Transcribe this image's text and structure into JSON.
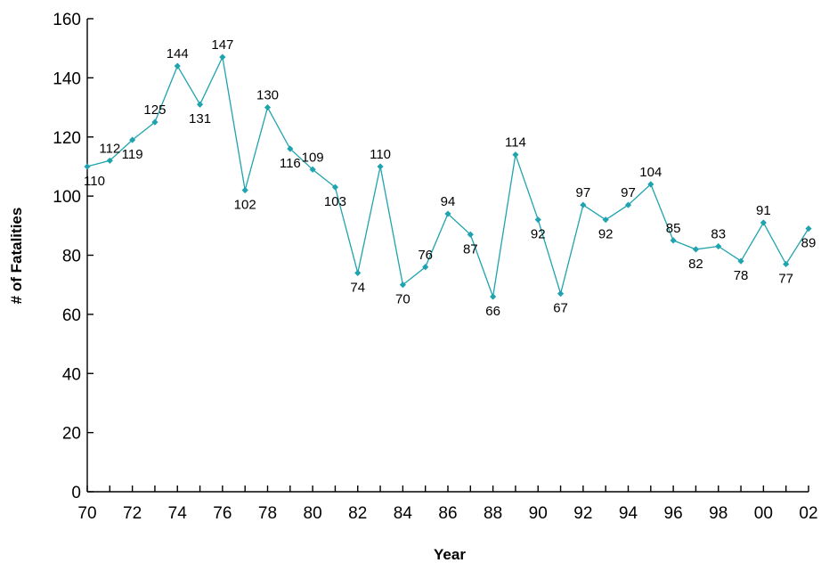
{
  "chart_data": {
    "type": "line",
    "title": "",
    "xlabel": "Year",
    "ylabel": "# of Fatalities",
    "ylim": [
      0,
      160
    ],
    "yticks": [
      0,
      20,
      40,
      60,
      80,
      100,
      120,
      140,
      160
    ],
    "x": [
      "70",
      "71",
      "72",
      "73",
      "74",
      "75",
      "76",
      "77",
      "78",
      "79",
      "80",
      "81",
      "82",
      "83",
      "84",
      "85",
      "86",
      "87",
      "88",
      "89",
      "90",
      "91",
      "92",
      "93",
      "94",
      "95",
      "96",
      "97",
      "98",
      "99",
      "00",
      "01",
      "02"
    ],
    "xtick_labels": [
      "70",
      "72",
      "74",
      "76",
      "78",
      "80",
      "82",
      "84",
      "86",
      "88",
      "90",
      "92",
      "94",
      "96",
      "98",
      "00",
      "02"
    ],
    "series": [
      {
        "values": [
          110,
          112,
          119,
          125,
          144,
          131,
          147,
          102,
          130,
          116,
          109,
          103,
          74,
          110,
          70,
          76,
          94,
          87,
          66,
          114,
          92,
          67,
          97,
          92,
          97,
          104,
          85,
          82,
          83,
          78,
          91,
          77,
          89
        ],
        "label_positions": [
          "below",
          "above",
          "below",
          "above",
          "above",
          "below",
          "above",
          "below",
          "above",
          "below",
          "above",
          "below",
          "below",
          "above",
          "below",
          "above",
          "above",
          "below",
          "below",
          "above",
          "below",
          "below",
          "above",
          "below",
          "above",
          "above",
          "above",
          "below",
          "above",
          "below",
          "above",
          "below",
          "below"
        ]
      }
    ],
    "grid": false,
    "colors": {
      "line": "#1FA3AE",
      "axis": "#000000"
    }
  }
}
